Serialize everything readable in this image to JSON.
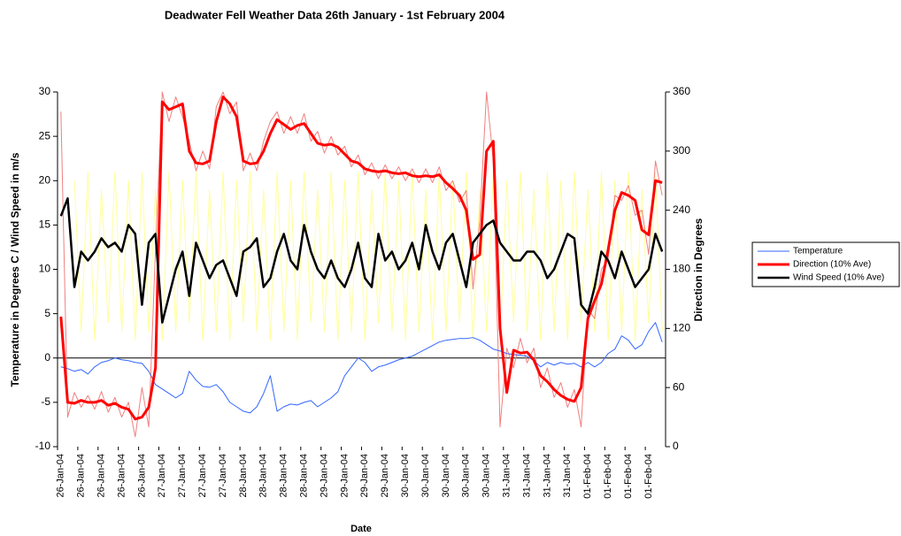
{
  "chart_data": {
    "type": "line",
    "title": "Deadwater Fell Weather Data 26th January -  1st February 2004",
    "x_label": "Date",
    "y_label": "Temperature in Degrees C / Wind Speed in m/s",
    "y2_label": "Direction in Degrees",
    "ylim": [
      -10,
      30
    ],
    "yticks": [
      -10,
      -5,
      0,
      5,
      10,
      15,
      20,
      25,
      30
    ],
    "y2lim": [
      0,
      360
    ],
    "y2ticks": [
      0,
      60,
      120,
      180,
      240,
      300,
      360
    ],
    "legend": "right",
    "categories": [
      "26-Jan-04",
      null,
      null,
      "26-Jan-04",
      null,
      null,
      "26-Jan-04",
      null,
      null,
      "26-Jan-04",
      null,
      null,
      "26-Jan-04",
      null,
      null,
      "27-Jan-04",
      null,
      null,
      "27-Jan-04",
      null,
      null,
      "27-Jan-04",
      null,
      null,
      "27-Jan-04",
      null,
      null,
      "28-Jan-04",
      null,
      null,
      "28-Jan-04",
      null,
      null,
      "28-Jan-04",
      null,
      null,
      "28-Jan-04",
      null,
      null,
      "29-Jan-04",
      null,
      null,
      "29-Jan-04",
      null,
      null,
      "29-Jan-04",
      null,
      null,
      "29-Jan-04",
      null,
      null,
      "30-Jan-04",
      null,
      null,
      "30-Jan-04",
      null,
      null,
      "30-Jan-04",
      null,
      null,
      "30-Jan-04",
      null,
      null,
      "30-Jan-04",
      null,
      null,
      "31-Jan-04",
      null,
      null,
      "31-Jan-04",
      null,
      null,
      "31-Jan-04",
      null,
      null,
      "31-Jan-04",
      null,
      null,
      "01-Feb-04",
      null,
      null,
      "01-Feb-04",
      null,
      null,
      "01-Feb-04",
      null,
      null,
      "01-Feb-04",
      null,
      null
    ],
    "series": [
      {
        "color": "#ffff99",
        "width": 1,
        "values": [
          null,
          null,
          20,
          3,
          21,
          2,
          19,
          4,
          21,
          3,
          20,
          2,
          21,
          3,
          19,
          2,
          21,
          3,
          20,
          4,
          21,
          2,
          19,
          3,
          21,
          2,
          20,
          4,
          21,
          3,
          19,
          2,
          21,
          3,
          20,
          2,
          21,
          4,
          19,
          3,
          21,
          2,
          20,
          3,
          21,
          2,
          19,
          4,
          21,
          3,
          20,
          2,
          21,
          3,
          19,
          2,
          21,
          3,
          20,
          4,
          21,
          2,
          19,
          3,
          21,
          2,
          20,
          4,
          21,
          3,
          19,
          2,
          21,
          3,
          20,
          2,
          21,
          4,
          19,
          3,
          21,
          2,
          20,
          3,
          21,
          2,
          19,
          4,
          21,
          3
        ]
      },
      {
        "color": "#f08080",
        "width": 1,
        "axis": "y2",
        "values": [
          340,
          30,
          55,
          40,
          52,
          38,
          56,
          35,
          50,
          30,
          45,
          10,
          60,
          20,
          200,
          360,
          330,
          355,
          335,
          310,
          280,
          300,
          282,
          345,
          360,
          338,
          350,
          280,
          298,
          280,
          310,
          330,
          340,
          318,
          335,
          318,
          338,
          310,
          320,
          298,
          315,
          296,
          305,
          284,
          296,
          276,
          288,
          272,
          286,
          272,
          284,
          270,
          282,
          268,
          282,
          268,
          284,
          260,
          270,
          248,
          260,
          160,
          230,
          360,
          290,
          20,
          100,
          80,
          110,
          85,
          100,
          60,
          80,
          50,
          65,
          40,
          58,
          20,
          140,
          130,
          180,
          190,
          255,
          250,
          265,
          235,
          240,
          195,
          290,
          255
        ]
      },
      {
        "name": "Temperature",
        "color": "#3366ff",
        "width": 1,
        "values": [
          -1,
          -1.2,
          -1.5,
          -1.3,
          -1.8,
          -1,
          -0.5,
          -0.3,
          0,
          -0.2,
          -0.3,
          -0.5,
          -0.6,
          -1.5,
          -3,
          -3.5,
          -4,
          -4.5,
          -4,
          -1.5,
          -2.5,
          -3.2,
          -3.3,
          -3,
          -3.8,
          -5,
          -5.5,
          -6,
          -6.2,
          -5.5,
          -4,
          -2,
          -6,
          -5.5,
          -5.2,
          -5.3,
          -5,
          -4.8,
          -5.5,
          -5,
          -4.5,
          -3.8,
          -2,
          -1,
          0,
          -0.5,
          -1.5,
          -1,
          -0.8,
          -0.5,
          -0.2,
          0,
          0.2,
          0.6,
          1,
          1.4,
          1.8,
          2,
          2.1,
          2.2,
          2.2,
          2.3,
          2,
          1.5,
          1,
          0.8,
          0.5,
          0.4,
          0.3,
          0.2,
          -0.3,
          -1,
          -0.5,
          -0.8,
          -0.5,
          -0.7,
          -0.6,
          -1,
          -0.5,
          -1,
          -0.5,
          0.5,
          1,
          2.5,
          2,
          1,
          1.5,
          3,
          4,
          1.8
        ]
      },
      {
        "name": "Direction (10% Ave)",
        "color": "#ff0000",
        "width": 3,
        "axis": "y2",
        "values": [
          132,
          45,
          44,
          47,
          45,
          45,
          47,
          42,
          44,
          40,
          38,
          28,
          30,
          40,
          80,
          350,
          342,
          345,
          348,
          300,
          288,
          287,
          290,
          330,
          355,
          348,
          335,
          290,
          287,
          288,
          300,
          318,
          332,
          327,
          322,
          326,
          328,
          318,
          308,
          306,
          307,
          304,
          297,
          290,
          288,
          282,
          280,
          279,
          280,
          278,
          277,
          278,
          275,
          274,
          275,
          274,
          276,
          268,
          262,
          255,
          240,
          190,
          195,
          300,
          310,
          120,
          55,
          98,
          95,
          96,
          88,
          72,
          66,
          58,
          52,
          48,
          46,
          60,
          130,
          148,
          165,
          200,
          240,
          258,
          255,
          250,
          220,
          215,
          270,
          268
        ]
      },
      {
        "name": "Wind Speed (10% Ave)",
        "color": "#000000",
        "width": 2.5,
        "values": [
          16,
          18,
          8,
          12,
          11,
          12,
          13.5,
          12.5,
          13,
          12,
          15,
          14,
          6,
          13,
          14,
          4,
          7,
          10,
          12,
          7,
          13,
          11,
          9,
          10.5,
          11,
          9,
          7,
          12,
          12.5,
          13.5,
          8,
          9,
          12,
          14,
          11,
          10,
          15,
          12,
          10,
          9,
          11,
          9,
          8,
          10,
          13,
          9,
          8,
          14,
          11,
          12,
          10,
          11,
          13,
          10,
          15,
          12,
          10,
          13,
          14,
          11,
          8,
          13,
          14,
          15,
          15.5,
          13,
          12,
          11,
          11,
          12,
          12,
          11,
          9,
          10,
          12,
          14,
          13.5,
          6,
          5,
          8,
          12,
          11,
          9,
          12,
          10,
          8,
          9,
          10,
          14,
          12
        ]
      }
    ]
  }
}
